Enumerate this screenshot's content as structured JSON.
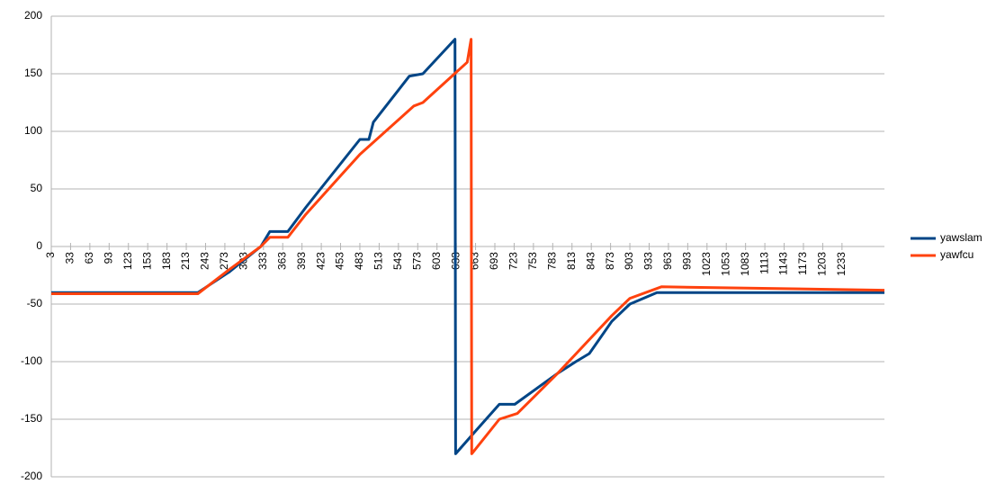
{
  "chart_data": {
    "type": "line",
    "xlim": [
      3,
      1299
    ],
    "xticks": [
      3,
      33,
      63,
      93,
      123,
      153,
      183,
      213,
      243,
      273,
      303,
      333,
      363,
      393,
      423,
      453,
      483,
      513,
      543,
      573,
      603,
      633,
      663,
      693,
      723,
      753,
      783,
      813,
      843,
      873,
      903,
      933,
      963,
      993,
      1023,
      1053,
      1083,
      1113,
      1143,
      1173,
      1203,
      1233
    ],
    "ylim": [
      -200,
      200
    ],
    "yticks": [
      -200,
      -150,
      -100,
      -50,
      0,
      50,
      100,
      150,
      200
    ],
    "grid": true,
    "legend": "right",
    "series": [
      {
        "name": "yawslam",
        "color": "#004586",
        "x": [
          3,
          133,
          231,
          280,
          329,
          343,
          371,
          399,
          483,
          497,
          504,
          560,
          581,
          631,
          632,
          665,
          700,
          724,
          791,
          819,
          840,
          875,
          903,
          945,
          1299
        ],
        "values": [
          -40,
          -40,
          -40,
          -22,
          0,
          13,
          13,
          34,
          93,
          93,
          108,
          148,
          150,
          180,
          -180,
          -159,
          -137,
          -137,
          -110,
          -100,
          -93,
          -65,
          -50,
          -40,
          -40
        ]
      },
      {
        "name": "yawfcu",
        "color": "#ff420e",
        "x": [
          3,
          231,
          280,
          329,
          343,
          371,
          399,
          483,
          567,
          581,
          650,
          656,
          657,
          700,
          728,
          791,
          875,
          903,
          952,
          1299
        ],
        "values": [
          -41,
          -41,
          -20,
          0,
          8,
          8,
          28,
          80,
          122,
          125,
          160,
          180,
          -180,
          -150,
          -145,
          -110,
          -60,
          -45,
          -35,
          -38
        ]
      }
    ]
  }
}
